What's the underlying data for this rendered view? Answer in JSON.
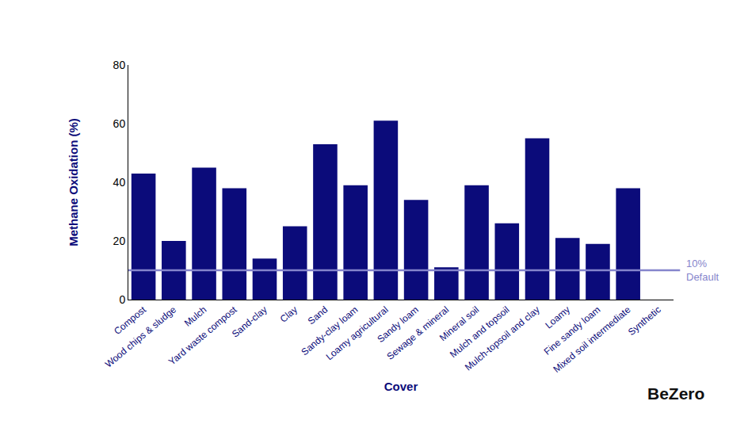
{
  "chart_data": {
    "type": "bar",
    "x_label": "Cover",
    "y_label": "Methane Oxidation (%)",
    "categories": [
      "Compost",
      "Wood chips & sludge",
      "Mulch",
      "Yard waste compost",
      "Sand-clay",
      "Clay",
      "Sand",
      "Sandy-clay loam",
      "Loamy agricultural",
      "Sandy loam",
      "Sewage & mineral",
      "Mineral soil",
      "Mulch and topsoil",
      "Mulch-topsoil and clay",
      "Loamy",
      "Fine sandy loam",
      "Mixed soil intermediate",
      "Synthetic"
    ],
    "values": [
      43,
      20,
      45,
      38,
      14,
      25,
      53,
      39,
      61,
      34,
      11,
      39,
      26,
      55,
      21,
      19,
      38,
      null
    ],
    "color": "#0b0b7a",
    "ylim": [
      0,
      80
    ],
    "yticks": [
      0,
      20,
      40,
      60,
      80
    ],
    "grid": false,
    "reference_line": {
      "value": 10,
      "label": [
        "10%",
        "Default"
      ],
      "color": "#8585cc"
    },
    "logo": "BeZero"
  }
}
